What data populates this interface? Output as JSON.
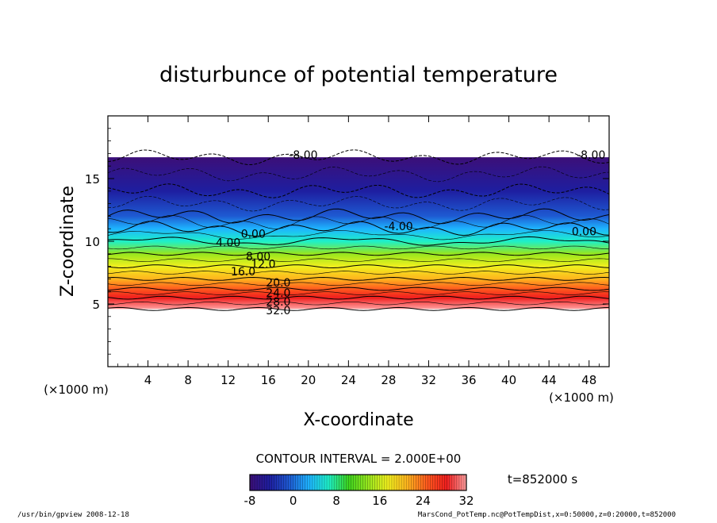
{
  "chart_data": {
    "type": "heatmap",
    "title": "disturbunce of potential temperature",
    "xlabel": "X-coordinate",
    "ylabel": "Z-coordinate",
    "x_unit_left": "(×1000 m)",
    "x_unit_right": "(×1000 m)",
    "xlim": [
      0,
      50
    ],
    "ylim": [
      0,
      20
    ],
    "x_ticks": [
      4,
      8,
      12,
      16,
      20,
      24,
      28,
      32,
      36,
      40,
      44,
      48
    ],
    "y_ticks": [
      5,
      10,
      15
    ],
    "contour_interval_text": "CONTOUR INTERVAL = 2.000E+00",
    "time_text": "t=852000 s",
    "colorbar": {
      "min": -8,
      "max": 32,
      "ticks": [
        -8,
        0,
        8,
        16,
        24,
        32
      ],
      "colors": [
        "#3c0f78",
        "#1e1ea0",
        "#1e5ad2",
        "#1eb4ff",
        "#1ef0c8",
        "#3cd21e",
        "#96e61e",
        "#f0f01e",
        "#ffb41e",
        "#ff5a1e",
        "#f01e1e",
        "#ffa0a0"
      ]
    },
    "field_profile": [
      {
        "z": 4.6,
        "value": 32
      },
      {
        "z": 5.5,
        "value": 28
      },
      {
        "z": 6.2,
        "value": 24
      },
      {
        "z": 7.0,
        "value": 20
      },
      {
        "z": 8.0,
        "value": 16
      },
      {
        "z": 9.0,
        "value": 12
      },
      {
        "z": 10.0,
        "value": 8
      },
      {
        "z": 11.0,
        "value": 4
      },
      {
        "z": 12.0,
        "value": 0
      },
      {
        "z": 14.0,
        "value": -4
      },
      {
        "z": 16.7,
        "value": -8
      }
    ],
    "contour_labels": [
      {
        "text": "-8.00",
        "x": 19.5,
        "z": 16.9
      },
      {
        "text": "-8.00",
        "x": 48.2,
        "z": 16.9
      },
      {
        "text": "-4.00",
        "x": 29.0,
        "z": 11.2
      },
      {
        "text": "0.00",
        "x": 47.5,
        "z": 10.8
      },
      {
        "text": "0.00",
        "x": 14.5,
        "z": 10.6
      },
      {
        "text": "4.00",
        "x": 12.0,
        "z": 9.9
      },
      {
        "text": "8.00",
        "x": 15.0,
        "z": 8.8
      },
      {
        "text": "12.0",
        "x": 15.5,
        "z": 8.2
      },
      {
        "text": "16.0",
        "x": 13.5,
        "z": 7.6
      },
      {
        "text": "20.0",
        "x": 17.0,
        "z": 6.7
      },
      {
        "text": "24.0",
        "x": 17.0,
        "z": 5.9
      },
      {
        "text": "28.0",
        "x": 17.0,
        "z": 5.2
      },
      {
        "text": "32.0",
        "x": 17.0,
        "z": 4.5
      }
    ]
  },
  "footer": {
    "left": "/usr/bin/gpview   2008-12-18",
    "right": "MarsCond_PotTemp.nc@PotTempDist,x=0:50000,z=0:20000,t=852000"
  }
}
